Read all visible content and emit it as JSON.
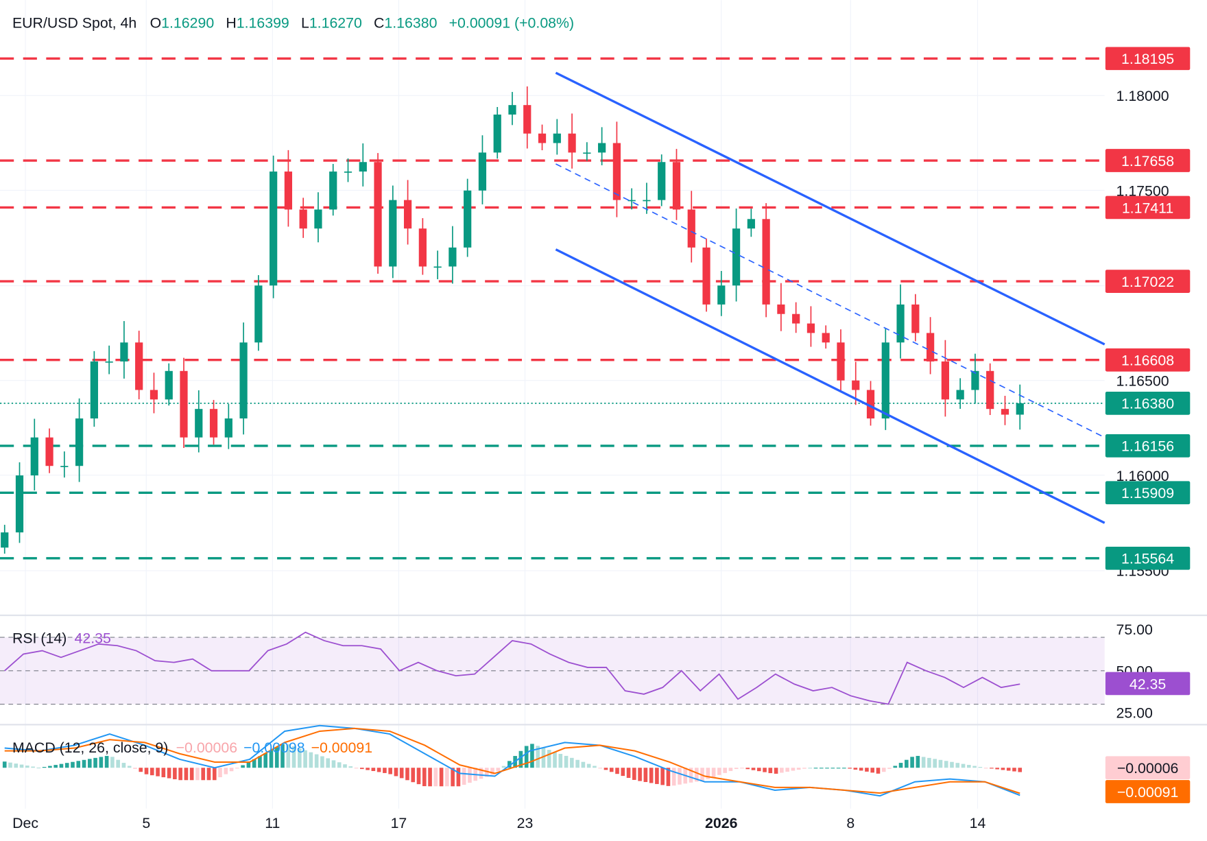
{
  "header": {
    "symbol": "EUR/USD Spot, 4h",
    "o_label": "O",
    "o": "1.16290",
    "h_label": "H",
    "h": "1.16399",
    "l_label": "L",
    "l": "1.16270",
    "c_label": "C",
    "c": "1.16380",
    "change": "+0.00091 (+0.08%)"
  },
  "colors": {
    "up": "#089981",
    "down": "#f23645",
    "channel": "#2962ff",
    "rsi": "#9c4fd0",
    "macd": "#2196f3",
    "signal": "#ff6d00",
    "hist_up": "#26a69a",
    "hist_down": "#ef5350"
  },
  "chart_data": [
    {
      "type": "candlestick",
      "title": "EUR/USD Spot, 4h",
      "x_ticks": [
        "Dec",
        "5",
        "11",
        "17",
        "23",
        "2026",
        "8",
        "14"
      ],
      "y_ticks": [
        "1.18000",
        "1.17500",
        "1.16500",
        "1.16000",
        "1.15500"
      ],
      "ylim": [
        1.154,
        1.184
      ],
      "closes": [
        1.157,
        1.16,
        1.162,
        1.1605,
        1.1605,
        1.163,
        1.166,
        1.166,
        1.167,
        1.1645,
        1.164,
        1.1655,
        1.162,
        1.1635,
        1.162,
        1.163,
        1.167,
        1.17,
        1.176,
        1.174,
        1.173,
        1.174,
        1.176,
        1.176,
        1.1765,
        1.171,
        1.1745,
        1.173,
        1.171,
        1.171,
        1.172,
        1.175,
        1.177,
        1.179,
        1.1795,
        1.178,
        1.1775,
        1.178,
        1.177,
        1.177,
        1.1775,
        1.1745,
        1.1745,
        1.1745,
        1.1765,
        1.174,
        1.172,
        1.169,
        1.17,
        1.173,
        1.1735,
        1.169,
        1.1685,
        1.168,
        1.1675,
        1.167,
        1.165,
        1.1645,
        1.163,
        1.167,
        1.169,
        1.1675,
        1.166,
        1.164,
        1.1645,
        1.1655,
        1.1635,
        1.1632,
        1.1638
      ],
      "resistance_levels": [
        "1.18195",
        "1.17658",
        "1.17411",
        "1.17022",
        "1.16608"
      ],
      "support_levels": [
        "1.16156",
        "1.15909",
        "1.15564"
      ],
      "last_price": "1.16380",
      "channel": {
        "upper": [
          [
            "Dec 24",
            1.1812
          ],
          [
            "Jan 16",
            1.1669
          ]
        ],
        "lower": [
          [
            "Dec 24",
            1.1719
          ],
          [
            "Jan 16",
            1.1575
          ]
        ],
        "mid": [
          [
            "Dec 24",
            1.1764
          ],
          [
            "Jan 16",
            1.162
          ]
        ]
      }
    },
    {
      "type": "line",
      "name": "RSI (14)",
      "value": "42.35",
      "ylim": [
        20,
        80
      ],
      "y_ticks": [
        "75.00",
        "50.00",
        "25.00"
      ],
      "bands": [
        30,
        50,
        70
      ],
      "values": [
        50,
        60,
        62,
        58,
        62,
        66,
        65,
        62,
        56,
        55,
        57,
        50,
        50,
        50,
        62,
        66,
        73,
        68,
        65,
        65,
        63,
        50,
        55,
        50,
        47,
        48,
        58,
        68,
        66,
        60,
        55,
        52,
        52,
        38,
        36,
        40,
        50,
        38,
        48,
        33,
        40,
        48,
        42,
        38,
        40,
        35,
        32,
        30,
        55,
        50,
        46,
        40,
        46,
        40,
        42
      ]
    },
    {
      "type": "line",
      "name": "MACD (12, 26, close, 9)",
      "hist_value": "−0.00006",
      "macd_value": "−0.00098",
      "signal_value": "−0.00091",
      "axis_labels": [
        "−0.00006",
        "−0.00091"
      ],
      "macd": [
        0.0007,
        0.0006,
        0.0008,
        0.0012,
        0.0008,
        0.0003,
        0.0,
        0.0003,
        0.0013,
        0.0015,
        0.0014,
        0.0012,
        0.0005,
        -0.0002,
        -0.0003,
        0.0006,
        0.0009,
        0.0008,
        0.0004,
        -0.0001,
        -0.0005,
        -0.0005,
        -0.0008,
        -0.0007,
        -0.0008,
        -0.001,
        -0.0005,
        -0.0004,
        -0.0005,
        -0.00098
      ],
      "signal": [
        0.0006,
        0.0006,
        0.0007,
        0.001,
        0.0009,
        0.0005,
        0.0002,
        0.0002,
        0.0009,
        0.0013,
        0.0014,
        0.0013,
        0.0008,
        0.0001,
        -0.0002,
        0.0002,
        0.0007,
        0.0008,
        0.0006,
        0.0002,
        -0.0003,
        -0.0005,
        -0.0007,
        -0.0007,
        -0.0008,
        -0.0009,
        -0.0007,
        -0.0005,
        -0.0005,
        -0.00091
      ]
    }
  ]
}
